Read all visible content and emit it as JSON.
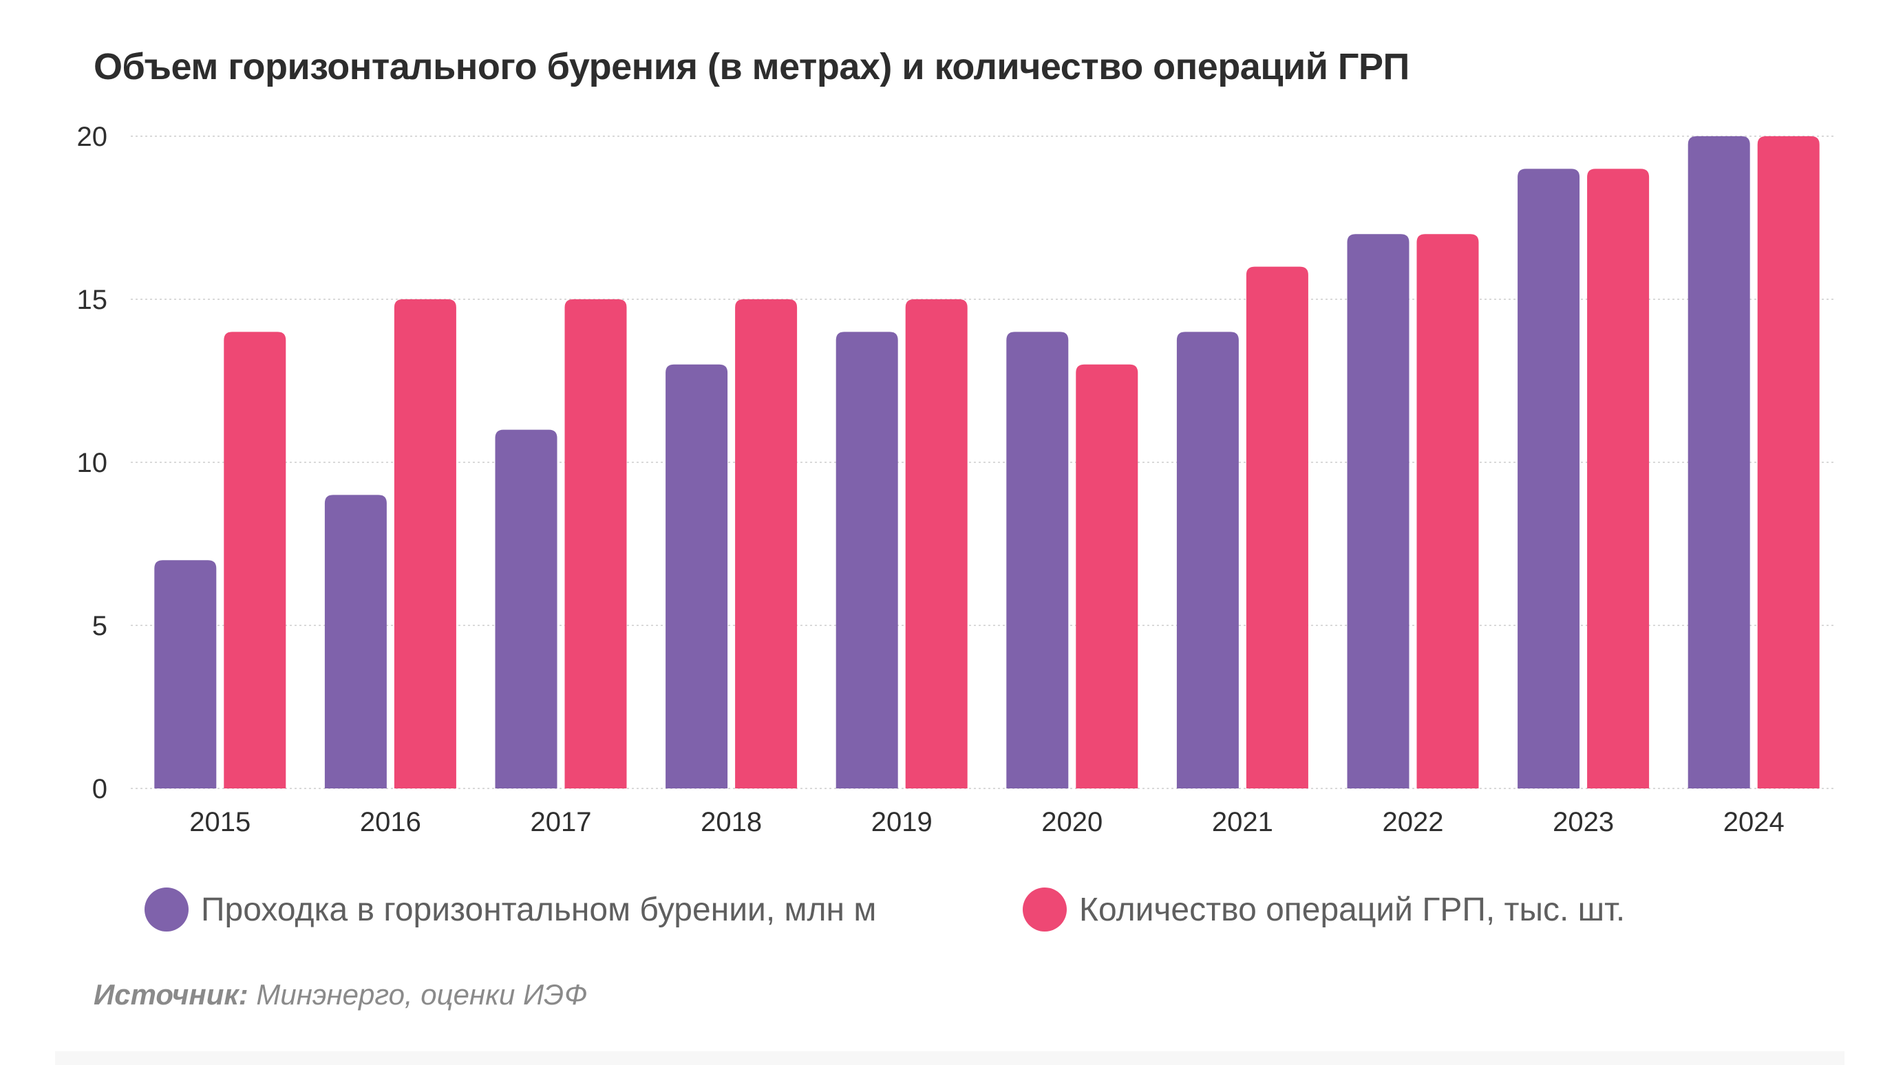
{
  "chart_data": {
    "type": "bar",
    "title": "Объем горизонтального бурения (в метрах) и количество операций ГРП",
    "xlabel": "",
    "ylabel": "",
    "ylim": [
      0,
      20
    ],
    "yticks": [
      0,
      5,
      10,
      15,
      20
    ],
    "grid": true,
    "categories": [
      "2015",
      "2016",
      "2017",
      "2018",
      "2019",
      "2020",
      "2021",
      "2022",
      "2023",
      "2024"
    ],
    "series": [
      {
        "name": "Проходка в горизонтальном бурении, млн м",
        "color": "#7f62ab",
        "values": [
          7,
          9,
          11,
          13,
          14,
          14,
          14,
          17,
          19,
          20
        ]
      },
      {
        "name": "Количество операций ГРП, тыс. шт.",
        "color": "#ee4874",
        "values": [
          14,
          15,
          15,
          15,
          15,
          13,
          16,
          17,
          19,
          20
        ]
      }
    ],
    "legend_position": "bottom"
  },
  "source": {
    "label": "Источник:",
    "text": " Минэнерго, оценки ИЭФ"
  },
  "colors": {
    "grid": "#d9d9d9",
    "title": "#2d2d2d"
  }
}
